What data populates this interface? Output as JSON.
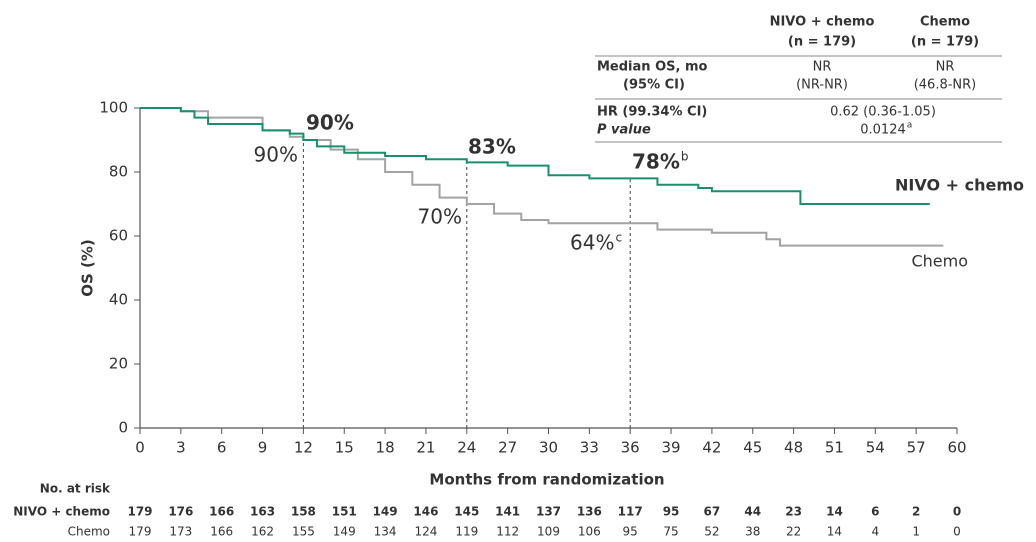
{
  "chart_data": {
    "type": "line",
    "xlabel": "Months from randomization",
    "ylabel": "OS (%)",
    "xlim": [
      0,
      60
    ],
    "ylim": [
      0,
      100
    ],
    "xticks": [
      0,
      3,
      6,
      9,
      12,
      15,
      18,
      21,
      24,
      27,
      30,
      33,
      36,
      39,
      42,
      45,
      48,
      51,
      54,
      57,
      60
    ],
    "yticks": [
      0,
      20,
      40,
      60,
      80,
      100
    ],
    "series": [
      {
        "name": "NIVO + chemo",
        "color": "#17906b",
        "x": [
          0,
          2,
          3,
          4,
          5,
          9,
          11,
          12,
          13,
          15,
          18,
          21,
          24,
          27,
          30,
          33,
          36,
          38,
          41,
          42,
          48.5,
          58
        ],
        "values": [
          100,
          100,
          99,
          97,
          95,
          93,
          92,
          90,
          88,
          86,
          85,
          84,
          83,
          82,
          79,
          78,
          78,
          76,
          75,
          74,
          70,
          70
        ]
      },
      {
        "name": "Chemo",
        "color": "#a3a3a3",
        "x": [
          0,
          3,
          5,
          9,
          11,
          12,
          14,
          16,
          18,
          20,
          22,
          24,
          26,
          28,
          30,
          36,
          38,
          42,
          46,
          47,
          59
        ],
        "values": [
          100,
          99,
          97,
          93,
          91,
          90,
          87,
          84,
          80,
          76,
          72,
          70,
          67,
          65,
          64,
          64,
          62,
          61,
          59,
          57,
          57
        ]
      }
    ],
    "landmarks": [
      {
        "x": 12,
        "values": [
          90,
          90
        ],
        "value_labels": [
          "90%",
          "90%"
        ]
      },
      {
        "x": 24,
        "values": [
          83,
          70
        ],
        "value_labels": [
          "83%",
          "70%"
        ]
      },
      {
        "x": 36,
        "values": [
          78,
          64
        ],
        "value_labels": [
          "78%",
          "64%"
        ],
        "notes": [
          "b",
          "c"
        ]
      }
    ],
    "at_risk": {
      "title": "No. at risk",
      "rows": [
        [
          179,
          176,
          166,
          163,
          158,
          151,
          149,
          146,
          145,
          141,
          137,
          136,
          117,
          95,
          67,
          44,
          23,
          14,
          6,
          2,
          0
        ],
        [
          179,
          173,
          166,
          162,
          155,
          149,
          134,
          124,
          119,
          112,
          109,
          106,
          95,
          75,
          52,
          38,
          22,
          14,
          4,
          1,
          0
        ]
      ]
    },
    "summary_table": {
      "header": [
        [
          "NIVO + chemo",
          "(n = 179)"
        ],
        [
          "Chemo",
          "(n = 179)"
        ]
      ],
      "rows": [
        {
          "label": [
            "Median OS, mo",
            "(95% CI)"
          ],
          "cells": [
            [
              "NR",
              "(NR-NR)"
            ],
            [
              "NR",
              "(46.8-NR)"
            ]
          ]
        },
        {
          "label": [
            "HR (99.34% CI)",
            "P value"
          ],
          "merged": [
            "0.62 (0.36-1.05)",
            "0.0124"
          ],
          "note": "a"
        }
      ]
    }
  }
}
